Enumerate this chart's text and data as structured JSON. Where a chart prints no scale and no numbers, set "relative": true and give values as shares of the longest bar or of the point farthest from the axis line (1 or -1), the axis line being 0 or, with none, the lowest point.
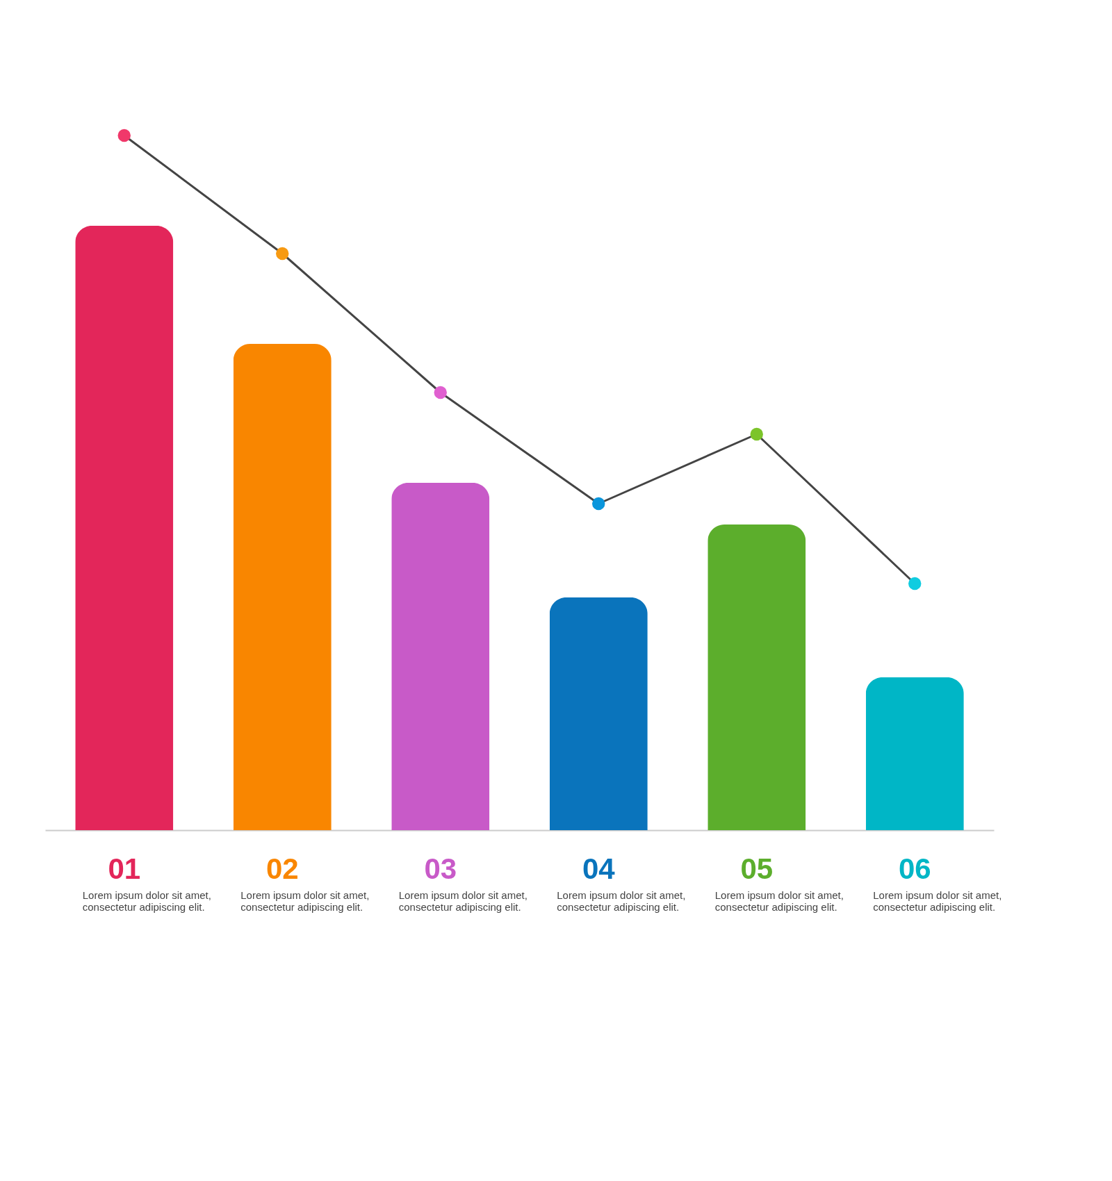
{
  "chart_data": {
    "type": "bar",
    "relative": true,
    "marker": "circle",
    "line_style": "solid",
    "categories": [
      "01",
      "02",
      "03",
      "04",
      "05",
      "06"
    ],
    "series": [
      {
        "colors": [
          "#e3265a",
          "#f98600",
          "#c85ac8",
          "#0a74bc",
          "#5cae2c",
          "#00b6c6"
        ],
        "values": [
          0.87,
          0.7,
          0.5,
          0.335,
          0.44,
          0.22
        ]
      },
      {
        "type": "line",
        "color": "#444444",
        "colors": [
          "#f0386a",
          "#f79a12",
          "#e060d0",
          "#0a96dc",
          "#7cc42a",
          "#10cce0"
        ],
        "values": [
          1,
          0.83,
          0.63,
          0.47,
          0.57,
          0.355
        ]
      }
    ],
    "annotations": [
      "Lorem ipsum dolor sit amet, consectetur adipiscing elit.",
      "Lorem ipsum dolor sit amet, consectetur adipiscing elit.",
      "Lorem ipsum dolor sit amet, consectetur adipiscing elit.",
      "Lorem ipsum dolor sit amet, consectetur adipiscing elit.",
      "Lorem ipsum dolor sit amet, consectetur adipiscing elit.",
      "Lorem ipsum dolor sit amet, consectetur adipiscing elit."
    ]
  }
}
